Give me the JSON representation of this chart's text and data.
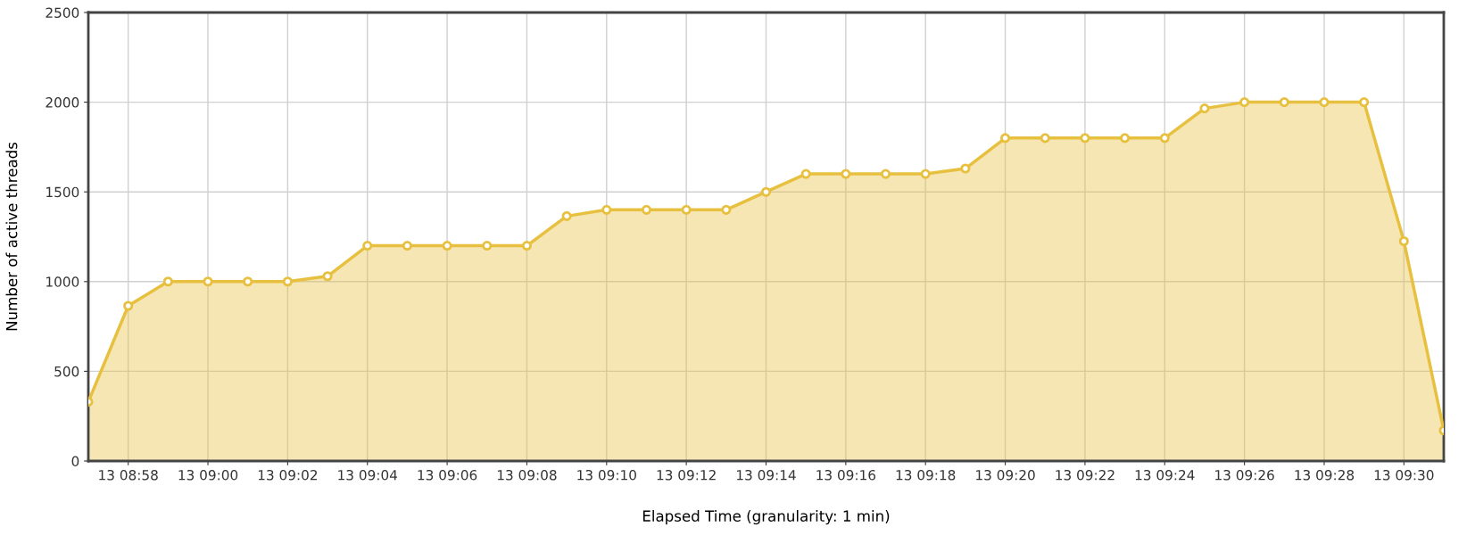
{
  "chart_data": {
    "type": "area",
    "xlabel": "Elapsed Time (granularity: 1 min)",
    "ylabel": "Number of active threads",
    "categories": [
      null,
      "13 08:58",
      null,
      "13 09:00",
      null,
      "13 09:02",
      null,
      "13 09:04",
      null,
      "13 09:06",
      null,
      "13 09:08",
      null,
      "13 09:10",
      null,
      "13 09:12",
      null,
      "13 09:14",
      null,
      "13 09:16",
      null,
      "13 09:18",
      null,
      "13 09:20",
      null,
      "13 09:22",
      null,
      "13 09:24",
      null,
      "13 09:26",
      null,
      "13 09:28",
      null,
      "13 09:30",
      null
    ],
    "series": [
      {
        "color": "#e8c040",
        "values": [
          330,
          865,
          1000,
          1000,
          1000,
          1000,
          1030,
          1200,
          1200,
          1200,
          1200,
          1200,
          1365,
          1400,
          1400,
          1400,
          1400,
          1500,
          1600,
          1600,
          1600,
          1600,
          1630,
          1800,
          1800,
          1800,
          1800,
          1800,
          1965,
          2000,
          2000,
          2000,
          2000,
          1225,
          170
        ]
      }
    ],
    "ylim": [
      0,
      2500
    ],
    "yticks": [
      0,
      500,
      1000,
      1500,
      2000,
      2500
    ],
    "grid": true,
    "marker": "circle",
    "line_style": "solid"
  }
}
